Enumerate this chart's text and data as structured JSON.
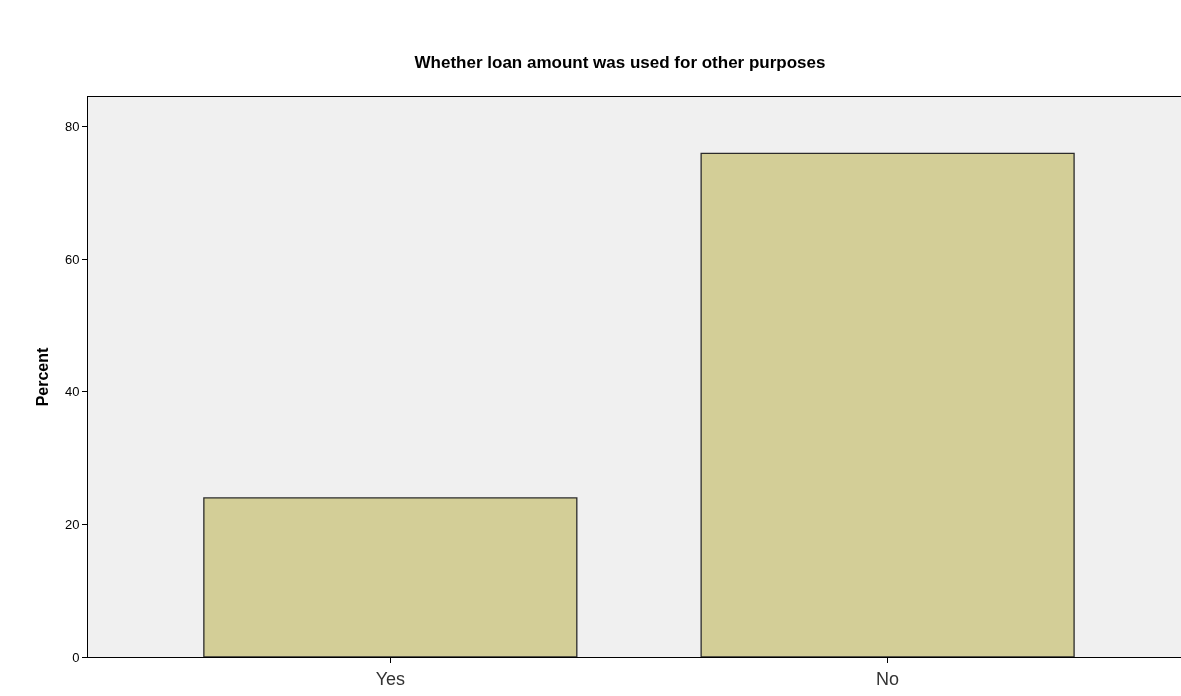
{
  "chart_data": {
    "type": "bar",
    "title": "Whether loan amount was used for other purposes",
    "ylabel": "Percent",
    "categories": [
      "Yes",
      "No"
    ],
    "values": [
      24,
      76
    ],
    "color": "#d3ce97",
    "ylim": [
      0,
      84.5
    ],
    "yticks": [
      0,
      20,
      40,
      60,
      80
    ],
    "grid": false,
    "legend": false
  }
}
